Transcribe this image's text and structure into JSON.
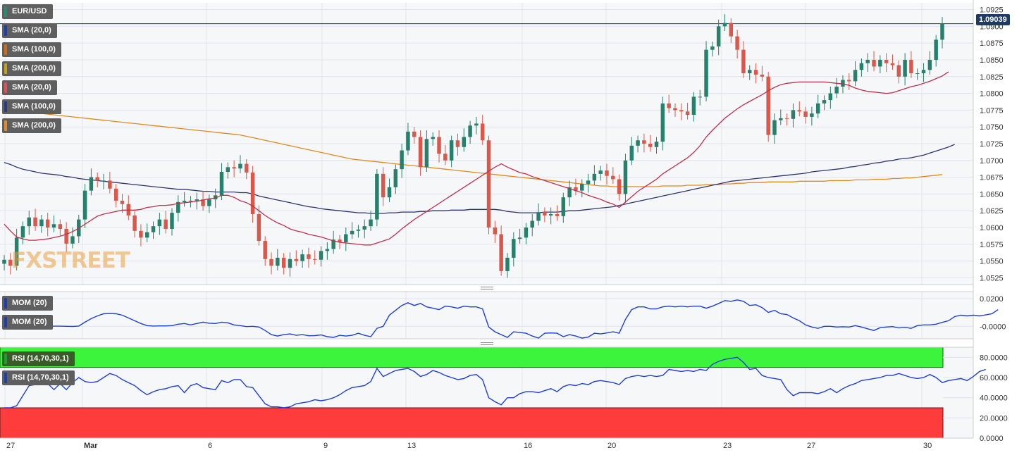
{
  "symbol": "EUR/USD",
  "current_price": "1.09039",
  "watermark": "FXSTREET",
  "legend": {
    "main": [
      {
        "label": "SMA (20,0)",
        "color": "#1e3fa8"
      },
      {
        "label": "SMA (100,0)",
        "color": "#d06a1a"
      },
      {
        "label": "SMA (200,0)",
        "color": "#c2a21a"
      },
      {
        "label": "SMA (20,0)",
        "color": "#e0505a"
      },
      {
        "label": "SMA (100,0)",
        "color": "#2c3a80"
      },
      {
        "label": "SMA (200,0)",
        "color": "#e08a30"
      }
    ],
    "momentum": [
      {
        "label": "MOM (20)",
        "color": "#1e3fa8"
      },
      {
        "label": "MOM (20)",
        "color": "#1e3fa8"
      }
    ],
    "rsi": [
      {
        "label": "RSI (14,70,30,1)",
        "color": "#1e9e2e"
      },
      {
        "label": "RSI (14,70,30,1)",
        "color": "#1e3fa8"
      }
    ]
  },
  "colors": {
    "up": "#26806b",
    "down": "#d9584c",
    "sma20": "#c0304a",
    "sma100": "#2c3472",
    "sma200": "#e08a20",
    "line": "#1e3fd8",
    "rsi_over": "#3cf43c",
    "rsi_under": "#ff3c3c"
  },
  "chart_data": {
    "type": "candlestick",
    "panels": [
      {
        "name": "price",
        "y_ticks": [
          "1.0925",
          "1.0900",
          "1.0875",
          "1.0850",
          "1.0825",
          "1.0800",
          "1.0775",
          "1.0750",
          "1.0725",
          "1.0700",
          "1.0675",
          "1.0650",
          "1.0625",
          "1.0600",
          "1.0575",
          "1.0550",
          "1.0525"
        ],
        "ylim": [
          1.0515,
          1.0935
        ],
        "current": 1.09039,
        "closes": [
          1.0552,
          1.0543,
          1.0585,
          1.0602,
          1.0615,
          1.0602,
          1.0612,
          1.06,
          1.0605,
          1.0598,
          1.0576,
          1.0587,
          1.0612,
          1.0655,
          1.0675,
          1.067,
          1.067,
          1.0658,
          1.064,
          1.0635,
          1.0618,
          1.0595,
          1.0585,
          1.0593,
          1.0602,
          1.0612,
          1.0598,
          1.0622,
          1.0638,
          1.064,
          1.064,
          1.0642,
          1.0632,
          1.0642,
          1.0648,
          1.0683,
          1.069,
          1.0688,
          1.0695,
          1.0682,
          1.062,
          1.058,
          1.0553,
          1.0543,
          1.0555,
          1.054,
          1.0553,
          1.055,
          1.056,
          1.0553,
          1.0552,
          1.0565,
          1.0568,
          1.0582,
          1.0578,
          1.059,
          1.0595,
          1.0597,
          1.0602,
          1.0612,
          1.068,
          1.0645,
          1.066,
          1.0687,
          1.0715,
          1.0743,
          1.0735,
          1.069,
          1.0732,
          1.0735,
          1.071,
          1.07,
          1.073,
          1.072,
          1.0735,
          1.0752,
          1.0755,
          1.073,
          1.06,
          1.059,
          1.0535,
          1.0555,
          1.0583,
          1.0585,
          1.06,
          1.061,
          1.0623,
          1.0618,
          1.062,
          1.0617,
          1.0645,
          1.066,
          1.0655,
          1.0665,
          1.067,
          1.068,
          1.0685,
          1.0677,
          1.0672,
          1.065,
          1.07,
          1.0722,
          1.073,
          1.0725,
          1.072,
          1.0728,
          1.0785,
          1.0778,
          1.0775,
          1.0773,
          1.0768,
          1.0795,
          1.0795,
          1.0865,
          1.087,
          1.09,
          1.0905,
          1.0885,
          1.0865,
          1.083,
          1.0835,
          1.0828,
          1.0825,
          1.0738,
          1.076,
          1.0763,
          1.0762,
          1.0775,
          1.0773,
          1.0765,
          1.077,
          1.0785,
          1.079,
          1.08,
          1.081,
          1.082,
          1.0818,
          1.0835,
          1.0845,
          1.085,
          1.084,
          1.085,
          1.0845,
          1.0842,
          1.0825,
          1.085,
          1.083,
          1.083,
          1.0835,
          1.085,
          1.088,
          1.09039
        ],
        "sma20": [
          1.0605,
          1.0595,
          1.0586,
          1.0583,
          1.0581,
          1.0581,
          1.0582,
          1.0583,
          1.0585,
          1.0587,
          1.059,
          1.0594,
          1.0599,
          1.0605,
          1.0611,
          1.0617,
          1.062,
          1.0622,
          1.0624,
          1.0626,
          1.0626,
          1.0626,
          1.0627,
          1.063,
          1.0631,
          1.0633,
          1.0633,
          1.0634,
          1.0636,
          1.0637,
          1.0638,
          1.0639,
          1.0641,
          1.0643,
          1.0644,
          1.0648,
          1.0648,
          1.0645,
          1.064,
          1.0637,
          1.0632,
          1.0625,
          1.0618,
          1.0612,
          1.0607,
          1.0603,
          1.0598,
          1.0595,
          1.0593,
          1.059,
          1.0588,
          1.0586,
          1.0583,
          1.058,
          1.0578,
          1.0577,
          1.0576,
          1.0575,
          1.0574,
          1.0574,
          1.0577,
          1.058,
          1.0583,
          1.059,
          1.0598,
          1.0605,
          1.0612,
          1.0618,
          1.0624,
          1.063,
          1.0636,
          1.0642,
          1.0648,
          1.0654,
          1.066,
          1.0666,
          1.0672,
          1.0678,
          1.0684,
          1.069,
          1.0695,
          1.069,
          1.0686,
          1.0682,
          1.068,
          1.0676,
          1.0673,
          1.067,
          1.0667,
          1.0664,
          1.0661,
          1.0658,
          1.0655,
          1.0652,
          1.0648,
          1.0645,
          1.0642,
          1.0638,
          1.0635,
          1.063,
          1.0638,
          1.0646,
          1.0654,
          1.066,
          1.0666,
          1.0672,
          1.068,
          1.0686,
          1.0692,
          1.0698,
          1.0704,
          1.0712,
          1.0722,
          1.0735,
          1.0745,
          1.0754,
          1.0763,
          1.077,
          1.0777,
          1.0783,
          1.0788,
          1.0793,
          1.0798,
          1.0804,
          1.0809,
          1.0813,
          1.0815,
          1.0816,
          1.0817,
          1.0817,
          1.0817,
          1.0817,
          1.0817,
          1.0816,
          1.0815,
          1.0814,
          1.0812,
          1.0808,
          1.0805,
          1.0803,
          1.0802,
          1.0801,
          1.08,
          1.0801,
          1.0804,
          1.0807,
          1.081,
          1.0812,
          1.0815,
          1.0818,
          1.0822,
          1.0826,
          1.0832
        ],
        "sma100": [
          1.0697,
          1.0694,
          1.069,
          1.0687,
          1.0685,
          1.0683,
          1.0681,
          1.068,
          1.0679,
          1.0678,
          1.0676,
          1.0675,
          1.0673,
          1.0672,
          1.0671,
          1.067,
          1.0669,
          1.0668,
          1.0667,
          1.0666,
          1.0665,
          1.0664,
          1.0663,
          1.0662,
          1.0661,
          1.066,
          1.0659,
          1.0658,
          1.0657,
          1.0657,
          1.0656,
          1.0655,
          1.0654,
          1.0654,
          1.0653,
          1.0653,
          1.0653,
          1.0653,
          1.0652,
          1.0652,
          1.065,
          1.0647,
          1.0645,
          1.0643,
          1.0641,
          1.0639,
          1.0637,
          1.0635,
          1.0633,
          1.0631,
          1.063,
          1.0628,
          1.0627,
          1.0626,
          1.0625,
          1.0624,
          1.0623,
          1.0622,
          1.0622,
          1.0621,
          1.0621,
          1.0621,
          1.0622,
          1.0622,
          1.0623,
          1.0623,
          1.0623,
          1.0624,
          1.0624,
          1.0625,
          1.0625,
          1.0625,
          1.0626,
          1.0626,
          1.0626,
          1.0627,
          1.0627,
          1.0627,
          1.0627,
          1.0627,
          1.0626,
          1.0624,
          1.0623,
          1.0622,
          1.0622,
          1.0622,
          1.0622,
          1.0623,
          1.0623,
          1.0623,
          1.0624,
          1.0625,
          1.0625,
          1.0626,
          1.0627,
          1.0628,
          1.0629,
          1.063,
          1.0631,
          1.0633,
          1.0635,
          1.0637,
          1.0639,
          1.0641,
          1.0643,
          1.0645,
          1.0647,
          1.0649,
          1.0651,
          1.0653,
          1.0655,
          1.0657,
          1.0659,
          1.0661,
          1.0663,
          1.0665,
          1.0667,
          1.0669,
          1.067,
          1.0671,
          1.0672,
          1.0673,
          1.0674,
          1.0675,
          1.0676,
          1.0677,
          1.0678,
          1.0679,
          1.068,
          1.0681,
          1.0683,
          1.0684,
          1.0685,
          1.0686,
          1.0687,
          1.0688,
          1.069,
          1.0691,
          1.0693,
          1.0694,
          1.0696,
          1.0697,
          1.0699,
          1.07,
          1.0702,
          1.0703,
          1.0704,
          1.0706,
          1.0708,
          1.0711,
          1.0714,
          1.0717,
          1.072,
          1.0724
        ],
        "sma200": [
          1.0782,
          1.0779,
          1.0777,
          1.0775,
          1.0773,
          1.0771,
          1.077,
          1.0769,
          1.0768,
          1.0767,
          1.0766,
          1.0765,
          1.0764,
          1.0763,
          1.0762,
          1.0761,
          1.076,
          1.0759,
          1.0758,
          1.0757,
          1.0756,
          1.0755,
          1.0754,
          1.0753,
          1.0752,
          1.0751,
          1.075,
          1.0749,
          1.0748,
          1.0747,
          1.0746,
          1.0745,
          1.0744,
          1.0743,
          1.0742,
          1.0741,
          1.074,
          1.0739,
          1.0738,
          1.0736,
          1.0734,
          1.0732,
          1.073,
          1.0728,
          1.0726,
          1.0724,
          1.0722,
          1.072,
          1.0718,
          1.0716,
          1.0714,
          1.0712,
          1.071,
          1.0708,
          1.0706,
          1.0704,
          1.0702,
          1.0701,
          1.07,
          1.0699,
          1.0698,
          1.0697,
          1.0696,
          1.0695,
          1.0694,
          1.0693,
          1.0692,
          1.0691,
          1.069,
          1.0689,
          1.0688,
          1.0687,
          1.0686,
          1.0685,
          1.0684,
          1.0683,
          1.0682,
          1.0681,
          1.068,
          1.0679,
          1.0678,
          1.0677,
          1.0676,
          1.0675,
          1.0674,
          1.0673,
          1.0672,
          1.0671,
          1.067,
          1.0669,
          1.0668,
          1.0667,
          1.0666,
          1.0665,
          1.0664,
          1.0663,
          1.0662,
          1.0662,
          1.0661,
          1.0661,
          1.0661,
          1.0661,
          1.0661,
          1.0661,
          1.0661,
          1.0661,
          1.0662,
          1.0662,
          1.0662,
          1.0662,
          1.0663,
          1.0663,
          1.0663,
          1.0664,
          1.0664,
          1.0664,
          1.0665,
          1.0665,
          1.0666,
          1.0666,
          1.0667,
          1.0667,
          1.0667,
          1.0668,
          1.0668,
          1.0668,
          1.0668,
          1.0668,
          1.0669,
          1.0669,
          1.0669,
          1.0669,
          1.0669,
          1.067,
          1.067,
          1.067,
          1.067,
          1.0671,
          1.0671,
          1.0671,
          1.0672,
          1.0672,
          1.0672,
          1.0673,
          1.0673,
          1.0674,
          1.0674,
          1.0675,
          1.0676,
          1.0677,
          1.0678,
          1.0679
        ]
      },
      {
        "name": "momentum",
        "y_ticks": [
          "0.0200",
          "-0.0000"
        ],
        "ylim": [
          -0.009,
          0.025
        ],
        "values": [
          -0.0002,
          -0.0004,
          -0.0003,
          -0.0001,
          0.0001,
          0.0001,
          0.0,
          -0.0001,
          0.0001,
          0.0001,
          0.0,
          -0.0001,
          0.0002,
          0.003,
          0.0055,
          0.0075,
          0.009,
          0.0092,
          0.009,
          0.008,
          0.006,
          0.004,
          0.002,
          0.0005,
          0.0002,
          0.0003,
          0.0003,
          0.0005,
          0.0015,
          0.002,
          0.001,
          0.002,
          0.003,
          0.0022,
          0.002,
          0.003,
          0.0025,
          0.001,
          0.0005,
          -0.0002,
          0.0,
          -0.0005,
          -0.003,
          -0.006,
          -0.007,
          -0.006,
          -0.0055,
          -0.0065,
          -0.006,
          -0.0068,
          -0.0067,
          -0.0062,
          -0.0075,
          -0.008,
          -0.0065,
          -0.007,
          -0.0065,
          -0.005,
          -0.0065,
          -0.0075,
          -0.0015,
          0.0,
          0.008,
          0.0115,
          0.015,
          0.017,
          0.015,
          0.0165,
          0.014,
          0.013,
          0.012,
          0.0145,
          0.014,
          0.013,
          0.0145,
          0.014,
          0.014,
          0.0125,
          -0.0005,
          -0.004,
          -0.006,
          -0.008,
          -0.004,
          -0.0045,
          -0.005,
          -0.007,
          -0.0085,
          -0.005,
          -0.0048,
          -0.005,
          -0.0075,
          -0.006,
          -0.007,
          -0.0085,
          -0.0078,
          -0.005,
          -0.0055,
          -0.0048,
          -0.004,
          -0.005,
          0.005,
          0.012,
          0.014,
          0.014,
          0.0125,
          0.0125,
          0.014,
          0.0145,
          0.014,
          0.0145,
          0.014,
          0.0145,
          0.0145,
          0.013,
          0.0145,
          0.0165,
          0.0185,
          0.018,
          0.019,
          0.018,
          0.015,
          0.0155,
          0.0135,
          0.01,
          0.0115,
          0.009,
          0.0085,
          0.006,
          0.004,
          0.001,
          -0.0005,
          -0.0015,
          0.0,
          0.0,
          -0.0005,
          -0.0003,
          -0.0005,
          0.0005,
          -0.0005,
          -0.0018,
          -0.003,
          -0.001,
          -0.0005,
          -0.0002,
          -0.0012,
          -0.0008,
          -0.0015,
          0.0005,
          0.001,
          0.001,
          0.0015,
          0.0028,
          0.004,
          0.007,
          0.008,
          0.0075,
          0.008,
          0.0075,
          0.0082,
          0.009,
          0.012
        ]
      },
      {
        "name": "rsi",
        "y_ticks": [
          "80.0000",
          "60.0000",
          "40.0000",
          "20.0000",
          "0.0000"
        ],
        "ylim": [
          0,
          90
        ],
        "overbought": 70,
        "oversold": 30,
        "values": [
          30,
          30,
          32,
          42,
          52,
          53,
          53,
          54,
          48,
          54,
          48,
          55,
          60,
          56,
          55,
          56,
          60,
          64,
          62,
          58,
          55,
          52,
          47,
          43,
          46,
          48,
          49,
          51,
          52,
          45,
          52,
          54,
          50,
          49,
          48,
          57,
          55,
          58,
          58,
          51,
          50,
          42,
          34,
          31,
          31,
          30,
          31,
          34,
          35,
          36,
          38,
          37,
          38,
          40,
          43,
          47,
          50,
          51,
          52,
          56,
          69,
          61,
          64,
          67,
          68,
          69,
          66,
          61,
          63,
          67,
          65,
          62,
          60,
          58,
          59,
          62,
          63,
          58,
          40,
          36,
          33,
          40,
          40,
          44,
          46,
          46,
          45,
          47,
          49,
          46,
          51,
          53,
          52,
          54,
          53,
          56,
          57,
          56,
          55,
          53,
          59,
          61,
          62,
          61,
          62,
          61,
          62,
          68,
          67,
          66,
          67,
          66,
          68,
          67,
          73,
          76,
          78,
          79,
          80,
          75,
          68,
          69,
          62,
          60,
          59,
          58,
          48,
          42,
          45,
          45,
          45,
          44,
          46,
          49,
          45,
          49,
          52,
          54,
          57,
          58,
          59,
          60,
          62,
          62,
          64,
          62,
          60,
          59,
          60,
          63,
          60,
          55,
          57,
          58,
          59,
          57,
          61,
          66,
          68
        ]
      }
    ],
    "x_ticks": [
      "27",
      "Mar",
      "6",
      "9",
      "13",
      "16",
      "20",
      "23",
      "27",
      "30"
    ]
  }
}
